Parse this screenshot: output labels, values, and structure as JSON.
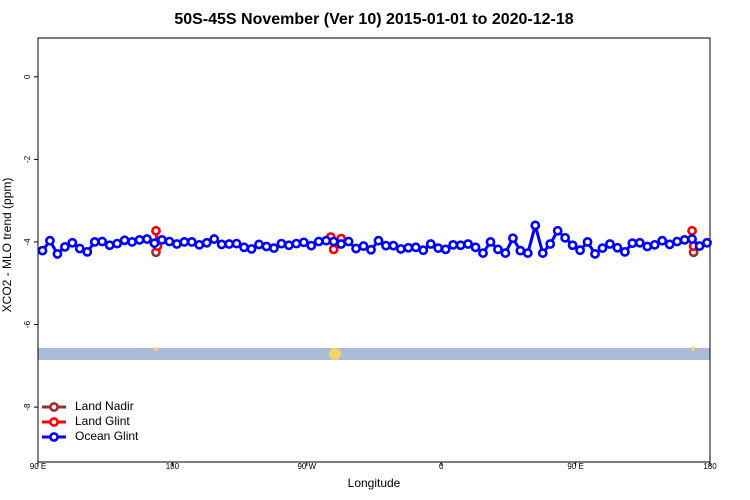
{
  "chart_data": {
    "type": "line",
    "title": "50S-45S November (Ver 10)   2015-01-01 to 2020-12-18",
    "x_label": "Longitude",
    "y_label": "XCO2 - MLO trend (ppm)",
    "xlim": [
      90,
      540
    ],
    "xticks": [
      {
        "value": 90,
        "label": "90 E"
      },
      {
        "value": 180,
        "label": "180"
      },
      {
        "value": 270,
        "label": "90 W"
      },
      {
        "value": 360,
        "label": "0"
      },
      {
        "value": 450,
        "label": "90 E"
      },
      {
        "value": 540,
        "label": "180"
      }
    ],
    "ylim": [
      -9.33,
      0.94
    ],
    "yticks": [
      0,
      -2,
      -4,
      -6,
      -8
    ],
    "legend": "bottom-left",
    "series": [
      {
        "name": "Land Nadir",
        "color": "#a52a2a",
        "x": [
          169,
          529
        ],
        "values": [
          -4.25,
          -4.25
        ]
      },
      {
        "name": "Land Glint",
        "color": "#ff0000",
        "x": [
          169,
          170,
          286,
          288,
          293,
          528,
          529
        ],
        "values": [
          -3.73,
          -4.1,
          -3.88,
          -4.18,
          -3.92,
          -3.73,
          -4.1
        ]
      },
      {
        "name": "Ocean Glint",
        "color": "#0000ff",
        "x": [
          93,
          98,
          103,
          108,
          113,
          118,
          123,
          128,
          133,
          138,
          143,
          148,
          153,
          158,
          163,
          168,
          173,
          178,
          183,
          188,
          193,
          198,
          203,
          208,
          213,
          218,
          223,
          228,
          233,
          238,
          243,
          248,
          253,
          258,
          263,
          268,
          273,
          278,
          283,
          288,
          293,
          298,
          303,
          308,
          313,
          318,
          323,
          328,
          333,
          338,
          343,
          348,
          353,
          358,
          363,
          368,
          373,
          378,
          383,
          388,
          393,
          398,
          403,
          408,
          413,
          418,
          423,
          428,
          433,
          438,
          443,
          448,
          453,
          458,
          463,
          468,
          473,
          478,
          483,
          488,
          493,
          498,
          503,
          508,
          513,
          518,
          523,
          528,
          533,
          538
        ],
        "values": [
          -4.21,
          -3.97,
          -4.29,
          -4.12,
          -4.02,
          -4.16,
          -4.24,
          -4.0,
          -3.99,
          -4.08,
          -4.04,
          -3.96,
          -4.0,
          -3.95,
          -3.93,
          -4.03,
          -3.95,
          -3.99,
          -4.05,
          -4.0,
          -4.0,
          -4.07,
          -4.02,
          -3.93,
          -4.06,
          -4.05,
          -4.04,
          -4.13,
          -4.17,
          -4.06,
          -4.11,
          -4.15,
          -4.04,
          -4.08,
          -4.04,
          -4.01,
          -4.09,
          -3.99,
          -3.97,
          -3.99,
          -4.05,
          -3.99,
          -4.16,
          -4.1,
          -4.19,
          -3.97,
          -4.09,
          -4.09,
          -4.17,
          -4.14,
          -4.13,
          -4.2,
          -4.05,
          -4.15,
          -4.18,
          -4.07,
          -4.08,
          -4.05,
          -4.13,
          -4.27,
          -4.0,
          -4.18,
          -4.27,
          -3.91,
          -4.21,
          -4.27,
          -3.6,
          -4.27,
          -4.05,
          -3.73,
          -3.9,
          -4.08,
          -4.2,
          -4.0,
          -4.29,
          -4.15,
          -4.05,
          -4.14,
          -4.24,
          -4.03,
          -4.02,
          -4.11,
          -4.07,
          -3.97,
          -4.06,
          -3.99,
          -3.95,
          -3.93,
          -4.1,
          -4.02
        ]
      }
    ]
  }
}
